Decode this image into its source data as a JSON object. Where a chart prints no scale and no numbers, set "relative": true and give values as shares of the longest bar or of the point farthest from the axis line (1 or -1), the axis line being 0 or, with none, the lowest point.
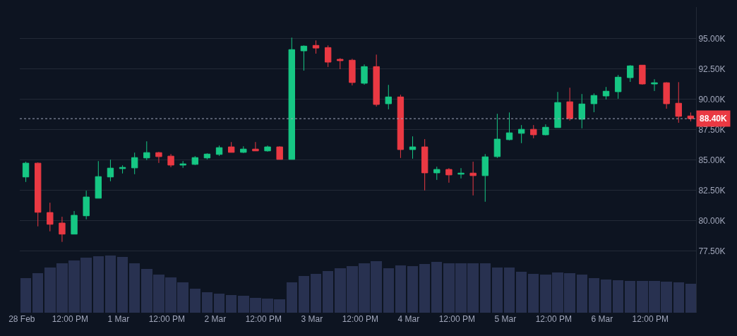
{
  "chart_data": [
    {
      "type": "candlestick",
      "x": [
        "--02-28T01:00",
        "--02-28T04:00",
        "--02-28T07:00",
        "--02-28T10:00",
        "--02-28T13:00",
        "--02-28T16:00",
        "--02-28T19:00",
        "--02-28T22:00",
        "--03-01T01:00",
        "--03-01T04:00",
        "--03-01T07:00",
        "--03-01T10:00",
        "--03-01T13:00",
        "--03-01T16:00",
        "--03-01T19:00",
        "--03-01T22:00",
        "--03-02T01:00",
        "--03-02T04:00",
        "--03-02T07:00",
        "--03-02T10:00",
        "--03-02T13:00",
        "--03-02T16:00",
        "--03-02T19:00",
        "--03-02T22:00",
        "--03-03T01:00",
        "--03-03T04:00",
        "--03-03T07:00",
        "--03-03T10:00",
        "--03-03T13:00",
        "--03-03T16:00",
        "--03-03T19:00",
        "--03-03T22:00",
        "--03-04T01:00",
        "--03-04T04:00",
        "--03-04T07:00",
        "--03-04T10:00",
        "--03-04T13:00",
        "--03-04T16:00",
        "--03-04T19:00",
        "--03-04T22:00",
        "--03-05T01:00",
        "--03-05T04:00",
        "--03-05T07:00",
        "--03-05T10:00",
        "--03-05T13:00",
        "--03-05T16:00",
        "--03-05T19:00",
        "--03-05T22:00",
        "--03-06T01:00",
        "--03-06T04:00",
        "--03-06T07:00",
        "--03-06T10:00",
        "--03-06T13:00",
        "--03-06T16:00",
        "--03-06T19:00",
        "--03-06T22:00"
      ],
      "ohlc": [
        [
          83590,
          84850,
          83180,
          84730
        ],
        [
          84730,
          84790,
          79520,
          80680
        ],
        [
          80660,
          81470,
          79110,
          79690
        ],
        [
          79790,
          80310,
          78240,
          78880
        ],
        [
          78880,
          80780,
          78880,
          80430
        ],
        [
          80390,
          82460,
          80100,
          81940
        ],
        [
          81840,
          84900,
          81840,
          83620
        ],
        [
          83590,
          85020,
          83240,
          84320
        ],
        [
          84280,
          84550,
          83880,
          84380
        ],
        [
          84340,
          85600,
          83820,
          85190
        ],
        [
          85160,
          86530,
          84980,
          85600
        ],
        [
          85600,
          85660,
          84750,
          85270
        ],
        [
          85310,
          85480,
          84400,
          84570
        ],
        [
          84570,
          84900,
          84340,
          84670
        ],
        [
          84630,
          85310,
          84570,
          85190
        ],
        [
          85160,
          85540,
          85040,
          85480
        ],
        [
          85450,
          86180,
          85330,
          86010
        ],
        [
          86070,
          86470,
          85620,
          85620
        ],
        [
          85620,
          86120,
          85560,
          85890
        ],
        [
          85890,
          86470,
          85740,
          85740
        ],
        [
          85740,
          86180,
          85680,
          86070
        ],
        [
          86070,
          86120,
          85040,
          85040
        ],
        [
          85040,
          95080,
          85040,
          94090
        ],
        [
          93990,
          94440,
          92360,
          94380
        ],
        [
          94440,
          94850,
          93760,
          94220
        ],
        [
          94260,
          94440,
          92660,
          93060
        ],
        [
          93290,
          93390,
          92480,
          93180
        ],
        [
          93220,
          93330,
          91140,
          91380
        ],
        [
          91320,
          92870,
          91200,
          92690
        ],
        [
          92690,
          93680,
          89400,
          89570
        ],
        [
          89630,
          91180,
          89170,
          90190
        ],
        [
          90190,
          90370,
          85160,
          85850
        ],
        [
          85850,
          86940,
          85100,
          86070
        ],
        [
          86070,
          86710,
          82480,
          83930
        ],
        [
          83930,
          84440,
          83350,
          84210
        ],
        [
          84210,
          84320,
          83120,
          83760
        ],
        [
          83820,
          84320,
          83470,
          83910
        ],
        [
          83910,
          84850,
          82070,
          83700
        ],
        [
          83700,
          85480,
          81550,
          85250
        ],
        [
          85270,
          88800,
          85160,
          86710
        ],
        [
          86670,
          88910,
          86610,
          87230
        ],
        [
          87190,
          87870,
          86380,
          87520
        ],
        [
          87520,
          87870,
          86780,
          87070
        ],
        [
          87070,
          87930,
          87020,
          87690
        ],
        [
          87660,
          90600,
          87660,
          89730
        ],
        [
          89790,
          90950,
          88240,
          88410
        ],
        [
          88350,
          90430,
          87600,
          89610
        ],
        [
          89630,
          90480,
          88930,
          90310
        ],
        [
          90270,
          91010,
          89980,
          90660
        ],
        [
          90620,
          92000,
          90040,
          91820
        ],
        [
          91780,
          92810,
          91430,
          92750
        ],
        [
          92810,
          92810,
          91200,
          91260
        ],
        [
          91260,
          91650,
          90680,
          91360
        ],
        [
          91360,
          91410,
          89220,
          89630
        ],
        [
          89670,
          91410,
          88060,
          88590
        ],
        [
          88620,
          88910,
          88180,
          88400
        ]
      ],
      "colors": [
        "#16c784",
        "#ea3943",
        "#ea3943",
        "#ea3943",
        "#16c784",
        "#16c784",
        "#16c784",
        "#16c784",
        "#16c784",
        "#16c784",
        "#16c784",
        "#ea3943",
        "#ea3943",
        "#16c784",
        "#16c784",
        "#16c784",
        "#16c784",
        "#ea3943",
        "#16c784",
        "#ea3943",
        "#16c784",
        "#ea3943",
        "#16c784",
        "#16c784",
        "#ea3943",
        "#ea3943",
        "#ea3943",
        "#ea3943",
        "#16c784",
        "#ea3943",
        "#16c784",
        "#ea3943",
        "#16c784",
        "#ea3943",
        "#16c784",
        "#ea3943",
        "#16c784",
        "#ea3943",
        "#16c784",
        "#16c784",
        "#16c784",
        "#16c784",
        "#ea3943",
        "#16c784",
        "#16c784",
        "#ea3943",
        "#16c784",
        "#16c784",
        "#16c784",
        "#16c784",
        "#16c784",
        "#ea3943",
        "#16c784",
        "#ea3943",
        "#ea3943",
        "#ea3943"
      ],
      "xlim": [
        "--02-27T23:30",
        "--03-06T23:20"
      ],
      "xticks": [
        {
          "value": "--02-28",
          "label": "28 Feb"
        },
        {
          "value": "--02-28T12:00",
          "label": "12:00 PM"
        },
        {
          "value": "--03-01",
          "label": "1 Mar"
        },
        {
          "value": "--03-01T12:00",
          "label": "12:00 PM"
        },
        {
          "value": "--03-02",
          "label": "2 Mar"
        },
        {
          "value": "--03-02T12:00",
          "label": "12:00 PM"
        },
        {
          "value": "--03-03",
          "label": "3 Mar"
        },
        {
          "value": "--03-03T12:00",
          "label": "12:00 PM"
        },
        {
          "value": "--03-04",
          "label": "4 Mar"
        },
        {
          "value": "--03-04T12:00",
          "label": "12:00 PM"
        },
        {
          "value": "--03-05",
          "label": "5 Mar"
        },
        {
          "value": "--03-05T12:00",
          "label": "12:00 PM"
        },
        {
          "value": "--03-06",
          "label": "6 Mar"
        },
        {
          "value": "--03-06T12:00",
          "label": "12:00 PM"
        }
      ],
      "ylim": [
        72400,
        97600
      ],
      "yticks": [
        {
          "value": 77500,
          "label": "77.50K"
        },
        {
          "value": 80000,
          "label": "80.00K"
        },
        {
          "value": 82500,
          "label": "82.50K"
        },
        {
          "value": 85000,
          "label": "85.00K"
        },
        {
          "value": 87500,
          "label": "87.50K"
        },
        {
          "value": 90000,
          "label": "90.00K"
        },
        {
          "value": 92500,
          "label": "92.50K"
        },
        {
          "value": 95000,
          "label": "95.00K"
        }
      ],
      "grid": "y",
      "ref_lines": [
        {
          "axis": "y",
          "value": 88400,
          "label": "88.40K",
          "color": "#a1a7bb",
          "line_style": "dotted"
        }
      ]
    },
    {
      "type": "bar",
      "relative": true,
      "color": "#283150",
      "categories": [
        null,
        null,
        null,
        null,
        null,
        null,
        null,
        null,
        null,
        null,
        null,
        null,
        null,
        null,
        null,
        null,
        null,
        null,
        null,
        null,
        null,
        null,
        null,
        null,
        null,
        null,
        null,
        null,
        null,
        null,
        null,
        null,
        null,
        null,
        null,
        null,
        null,
        null,
        null,
        null,
        null,
        null,
        null,
        null,
        null,
        null,
        null,
        null,
        null,
        null,
        null,
        null,
        null,
        null,
        null,
        null
      ],
      "values": [
        0.6,
        0.69,
        0.79,
        0.86,
        0.91,
        0.96,
        0.99,
        1,
        0.98,
        0.86,
        0.77,
        0.67,
        0.62,
        0.53,
        0.42,
        0.36,
        0.33,
        0.31,
        0.3,
        0.26,
        0.25,
        0.23,
        0.53,
        0.64,
        0.68,
        0.73,
        0.78,
        0.81,
        0.87,
        0.9,
        0.78,
        0.83,
        0.81,
        0.85,
        0.89,
        0.87,
        0.86,
        0.86,
        0.87,
        0.79,
        0.79,
        0.72,
        0.68,
        0.67,
        0.7,
        0.69,
        0.67,
        0.6,
        0.58,
        0.57,
        0.56,
        0.56,
        0.55,
        0.54,
        0.53,
        0.51
      ]
    }
  ]
}
